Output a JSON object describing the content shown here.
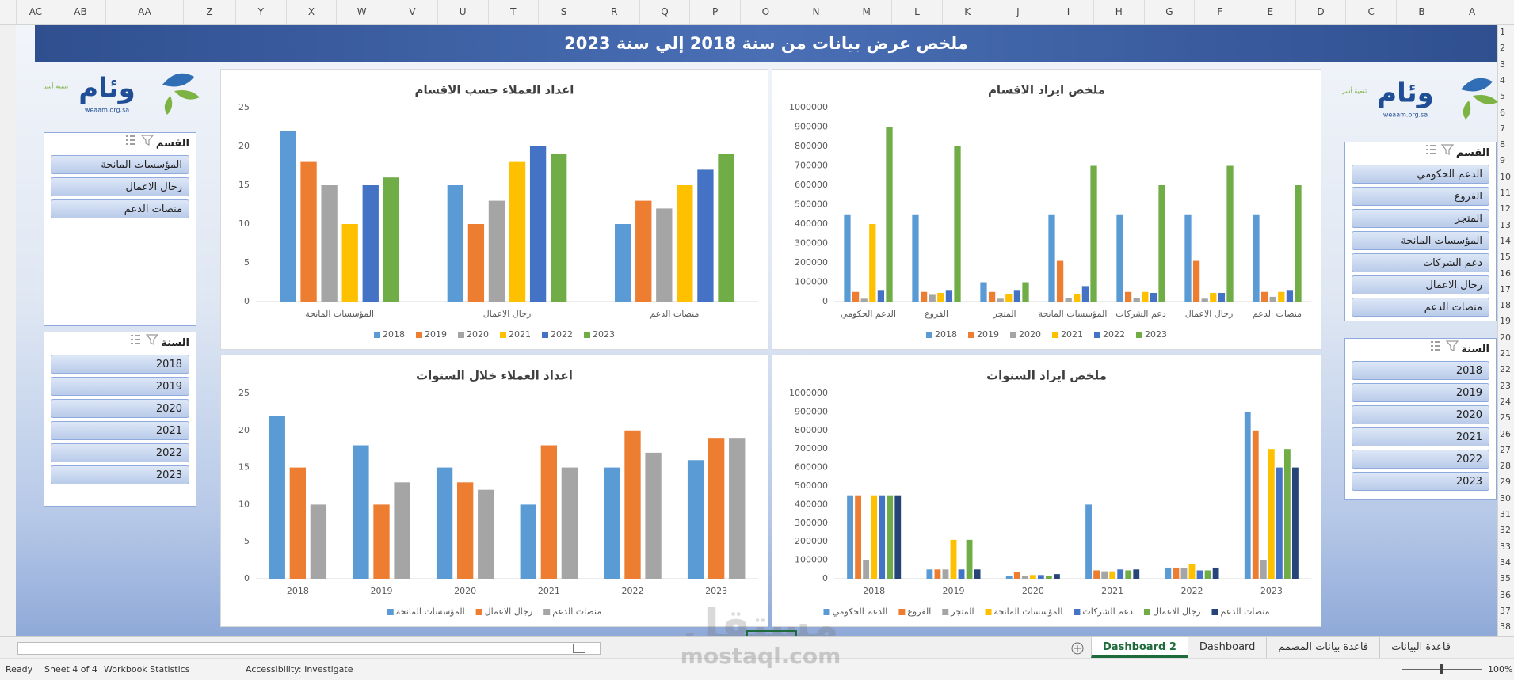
{
  "sheet": {
    "columns": [
      "AC",
      "AB",
      "AA",
      "Z",
      "Y",
      "X",
      "W",
      "V",
      "U",
      "T",
      "S",
      "R",
      "Q",
      "P",
      "O",
      "N",
      "M",
      "L",
      "K",
      "J",
      "I",
      "H",
      "G",
      "F",
      "E",
      "D",
      "C",
      "B",
      "A"
    ],
    "rows": [
      1,
      2,
      3,
      4,
      5,
      6,
      7,
      8,
      9,
      10,
      11,
      12,
      13,
      14,
      15,
      16,
      17,
      18,
      19,
      20,
      21,
      22,
      23,
      24,
      25,
      26,
      27,
      28,
      29,
      30,
      31,
      32,
      33,
      34,
      35,
      36,
      37,
      38
    ]
  },
  "banner": {
    "title": "ملخص عرض بيانات من سنة 2018 إلي سنة 2023"
  },
  "logo": {
    "name": "وئام",
    "tagline": "تنمية أسرية",
    "url": "weaam.org.sa"
  },
  "slicers": [
    {
      "title": "القسم",
      "items": [
        "المؤسسات المانحة",
        "رجال الاعمال",
        "منصات الدعم"
      ]
    },
    {
      "title": "السنة",
      "items": [
        "2018",
        "2019",
        "2020",
        "2021",
        "2022",
        "2023"
      ]
    },
    {
      "title": "القسم",
      "items": [
        "الدعم الحكومي",
        "الفروع",
        "المتجر",
        "المؤسسات المانحة",
        "دعم الشركات",
        "رجال الاعمال",
        "منصات الدعم"
      ]
    },
    {
      "title": "السنة",
      "items": [
        "2018",
        "2019",
        "2020",
        "2021",
        "2022",
        "2023"
      ]
    }
  ],
  "chart_data": [
    {
      "type": "bar",
      "title": "اعداد العملاء حسب الاقسام",
      "categories": [
        "المؤسسات المانحة",
        "رجال الاعمال",
        "منصات الدعم"
      ],
      "series": [
        {
          "name": "2018",
          "color": "#5b9bd5",
          "values": [
            22,
            15,
            10
          ]
        },
        {
          "name": "2019",
          "color": "#ed7d31",
          "values": [
            18,
            10,
            13
          ]
        },
        {
          "name": "2020",
          "color": "#a5a5a5",
          "values": [
            15,
            13,
            12
          ]
        },
        {
          "name": "2021",
          "color": "#ffc000",
          "values": [
            10,
            18,
            15
          ]
        },
        {
          "name": "2022",
          "color": "#4472c4",
          "values": [
            15,
            20,
            17
          ]
        },
        {
          "name": "2023",
          "color": "#70ad47",
          "values": [
            16,
            19,
            19
          ]
        }
      ],
      "ylim": [
        0,
        25
      ],
      "yticks": [
        0,
        5,
        10,
        15,
        20,
        25
      ],
      "grid": false,
      "legend": "bottom"
    },
    {
      "type": "bar",
      "title": "ملخص ايراد الاقسام",
      "categories": [
        "الدعم الحكومي",
        "الفروع",
        "المتجر",
        "المؤسسات المانحة",
        "دعم الشركات",
        "رجال الاعمال",
        "منصات الدعم"
      ],
      "series": [
        {
          "name": "2018",
          "color": "#5b9bd5",
          "values": [
            450000,
            450000,
            100000,
            450000,
            450000,
            450000,
            450000
          ]
        },
        {
          "name": "2019",
          "color": "#ed7d31",
          "values": [
            50000,
            50000,
            50000,
            210000,
            50000,
            210000,
            50000
          ]
        },
        {
          "name": "2020",
          "color": "#a5a5a5",
          "values": [
            15000,
            35000,
            15000,
            20000,
            20000,
            15000,
            25000
          ]
        },
        {
          "name": "2021",
          "color": "#ffc000",
          "values": [
            400000,
            45000,
            40000,
            40000,
            50000,
            45000,
            50000
          ]
        },
        {
          "name": "2022",
          "color": "#4472c4",
          "values": [
            60000,
            60000,
            60000,
            80000,
            45000,
            45000,
            60000
          ]
        },
        {
          "name": "2023",
          "color": "#70ad47",
          "values": [
            900000,
            800000,
            100000,
            700000,
            600000,
            700000,
            600000
          ]
        }
      ],
      "ylim": [
        0,
        1000000
      ],
      "yticks": [
        0,
        100000,
        200000,
        300000,
        400000,
        500000,
        600000,
        700000,
        800000,
        900000,
        1000000
      ],
      "grid": false,
      "legend": "bottom"
    },
    {
      "type": "bar",
      "title": "اعداد العملاء خلال السنوات",
      "categories": [
        "2018",
        "2019",
        "2020",
        "2021",
        "2022",
        "2023"
      ],
      "series": [
        {
          "name": "المؤسسات المانحة",
          "color": "#5b9bd5",
          "values": [
            22,
            18,
            15,
            10,
            15,
            16
          ]
        },
        {
          "name": "رجال الاعمال",
          "color": "#ed7d31",
          "values": [
            15,
            10,
            13,
            18,
            20,
            19
          ]
        },
        {
          "name": "منصات الدعم",
          "color": "#a5a5a5",
          "values": [
            10,
            13,
            12,
            15,
            17,
            19
          ]
        }
      ],
      "ylim": [
        0,
        25
      ],
      "yticks": [
        0,
        5,
        10,
        15,
        20,
        25
      ],
      "grid": false,
      "legend": "bottom"
    },
    {
      "type": "bar",
      "title": "ملخص ايراد السنوات",
      "categories": [
        "2018",
        "2019",
        "2020",
        "2021",
        "2022",
        "2023"
      ],
      "series": [
        {
          "name": "الدعم الحكومي",
          "color": "#5b9bd5",
          "values": [
            450000,
            50000,
            15000,
            400000,
            60000,
            900000
          ]
        },
        {
          "name": "الفروع",
          "color": "#ed7d31",
          "values": [
            450000,
            50000,
            35000,
            45000,
            60000,
            800000
          ]
        },
        {
          "name": "المتجر",
          "color": "#a5a5a5",
          "values": [
            100000,
            50000,
            15000,
            40000,
            60000,
            100000
          ]
        },
        {
          "name": "المؤسسات المانحة",
          "color": "#ffc000",
          "values": [
            450000,
            210000,
            20000,
            40000,
            80000,
            700000
          ]
        },
        {
          "name": "دعم الشركات",
          "color": "#4472c4",
          "values": [
            450000,
            50000,
            20000,
            50000,
            45000,
            600000
          ]
        },
        {
          "name": "رجال الاعمال",
          "color": "#70ad47",
          "values": [
            450000,
            210000,
            15000,
            45000,
            45000,
            700000
          ]
        },
        {
          "name": "منصات الدعم",
          "color": "#264478",
          "values": [
            450000,
            50000,
            25000,
            50000,
            60000,
            600000
          ]
        }
      ],
      "ylim": [
        0,
        1000000
      ],
      "yticks": [
        0,
        100000,
        200000,
        300000,
        400000,
        500000,
        600000,
        700000,
        800000,
        900000,
        1000000
      ],
      "grid": false,
      "legend": "bottom"
    }
  ],
  "watermark": {
    "arabic": "مستقل",
    "latin": "mostaql.com"
  },
  "tabs": [
    "قاعدة البيانات",
    "قاعدة بيانات المصمم",
    "Dashboard",
    "Dashboard 2"
  ],
  "active_tab": 3,
  "status": {
    "ready": "Ready",
    "sheet": "Sheet 4 of 4",
    "stats": "Workbook Statistics",
    "accessibility": "Accessibility: Investigate",
    "zoom": "100%"
  }
}
